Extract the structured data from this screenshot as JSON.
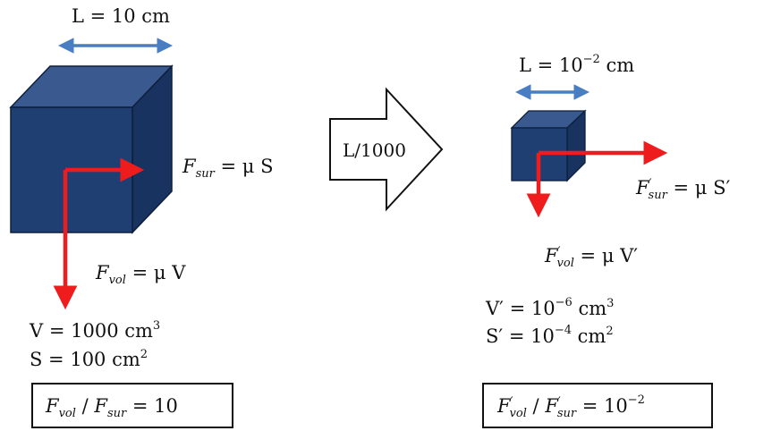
{
  "left": {
    "length_label": {
      "main": "L = 10 cm"
    },
    "f_sur": {
      "F": "F",
      "sub": "sur",
      "rhs": " = μ S"
    },
    "f_vol": {
      "F": "F",
      "sub": "vol",
      "rhs": " = μ V"
    },
    "volume": {
      "main": "V = 1000 cm",
      "sup": "3"
    },
    "surface": {
      "main": "S = 100 cm",
      "sup": "2"
    },
    "ratio": {
      "F1": "F",
      "sub1": "vol",
      "sep": " / ",
      "F2": "F",
      "sub2": "sur",
      "rhs": " = 10"
    }
  },
  "arrow_label": "L/1000",
  "right": {
    "length_label": {
      "main": "L = 10",
      "sup": "−2",
      "tail": " cm"
    },
    "f_sur": {
      "F": "F",
      "prime": "′",
      "sub": "sur",
      "rhs": " = μ S′"
    },
    "f_vol": {
      "F": "F",
      "prime": "′",
      "sub": "vol",
      "rhs": " = μ V′"
    },
    "volume": {
      "main": "V′ = 10",
      "sup": "−6",
      "tail": " cm",
      "sup2": "3"
    },
    "surface": {
      "main": "S′ = 10",
      "sup": "−4",
      "tail": " cm",
      "sup2": "2"
    },
    "ratio": {
      "F1": "F",
      "p1": "′",
      "sub1": "vol",
      "sep": " / ",
      "F2": "F",
      "p2": "′",
      "sub2": "sur",
      "rhs": " = 10",
      "sup": "−2"
    }
  },
  "colors": {
    "cube_front": "#1f3f73",
    "cube_top": "#3a5a8f",
    "cube_side": "#18335f",
    "force_arrow": "#ee1c1c",
    "dimension_arrow": "#4a7ec2"
  }
}
